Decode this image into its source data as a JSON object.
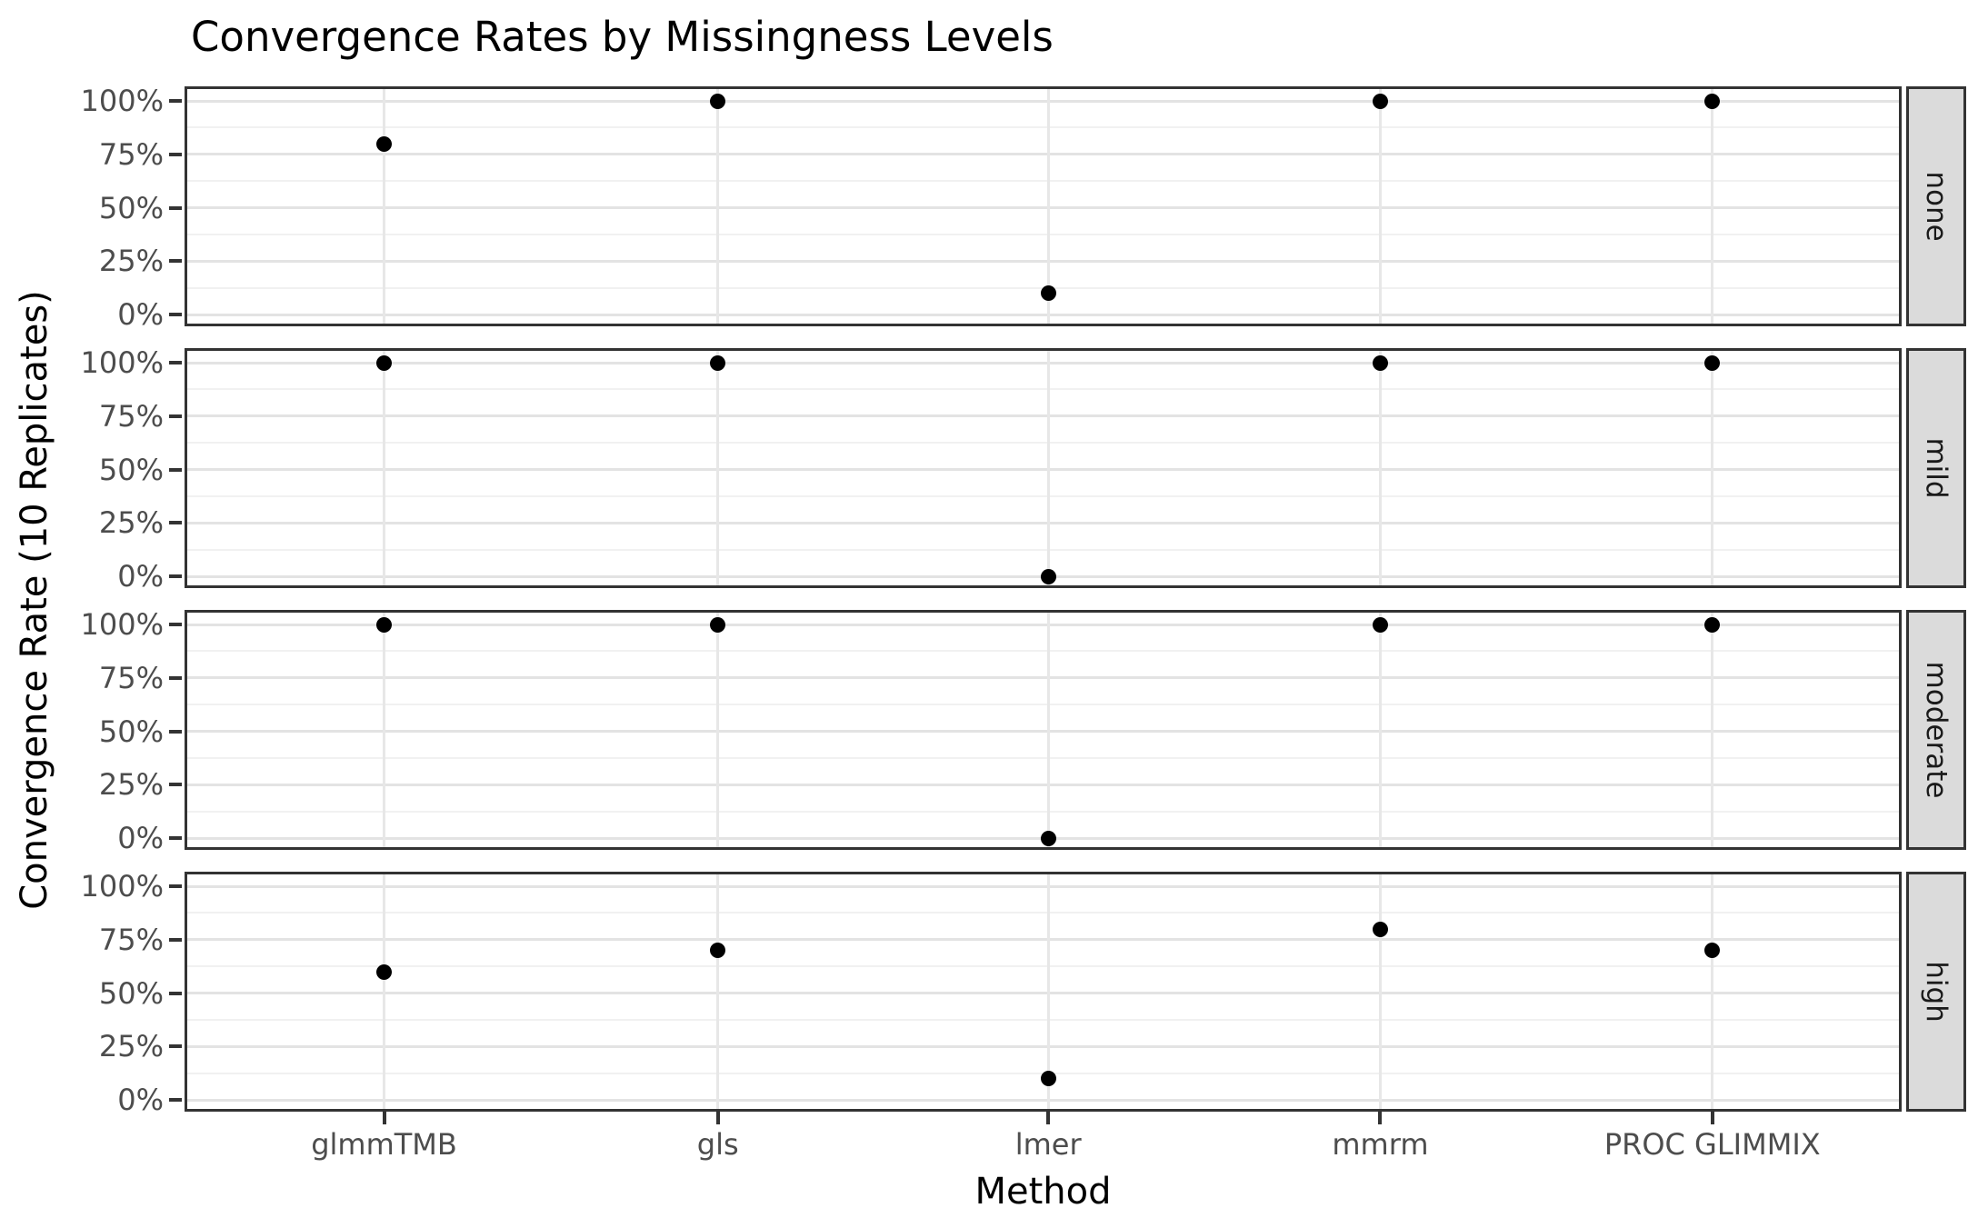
{
  "title": "Convergence Rates by Missingness Levels",
  "x_axis": {
    "title": "Method",
    "categories": [
      "glmmTMB",
      "gls",
      "lmer",
      "mmrm",
      "PROC GLIMMIX"
    ]
  },
  "y_axis": {
    "title": "Convergence Rate (10 Replicates)",
    "tick_labels": [
      "100%",
      "75%",
      "50%",
      "25%",
      "0%"
    ],
    "tick_values": [
      100,
      75,
      50,
      25,
      0
    ]
  },
  "facets": [
    "none",
    "mild",
    "moderate",
    "high"
  ],
  "colors": {
    "point": "#000000",
    "panel_border": "#333333",
    "strip_background": "#DBDBDB",
    "grid_major": "#E3E3E3",
    "grid_minor": "#F1F1F1",
    "grid_vertical": "#E7E7E7",
    "tick_text": "#4D4D4D",
    "tick_mark": "#333333",
    "text": "#000000"
  },
  "chart_data": {
    "type": "scatter",
    "title": "Convergence Rates by Missingness Levels",
    "xlabel": "Method",
    "ylabel": "Convergence Rate (10 Replicates)",
    "categories": [
      "glmmTMB",
      "gls",
      "lmer",
      "mmrm",
      "PROC GLIMMIX"
    ],
    "facet_levels": [
      "none",
      "mild",
      "moderate",
      "high"
    ],
    "facet_orientation": "rows",
    "series": [
      {
        "name": "none",
        "values": [
          80,
          100,
          10,
          100,
          100
        ]
      },
      {
        "name": "mild",
        "values": [
          100,
          100,
          0,
          100,
          100
        ]
      },
      {
        "name": "moderate",
        "values": [
          100,
          100,
          0,
          100,
          100
        ]
      },
      {
        "name": "high",
        "values": [
          60,
          70,
          10,
          80,
          70
        ]
      }
    ],
    "units": "percent",
    "ylim": [
      -5,
      105
    ],
    "y_major_ticks": [
      0,
      25,
      50,
      75,
      100
    ],
    "y_minor_ticks": [
      12.5,
      37.5,
      62.5,
      87.5
    ],
    "grid": true,
    "legend": "none",
    "point_color": "#000000"
  }
}
